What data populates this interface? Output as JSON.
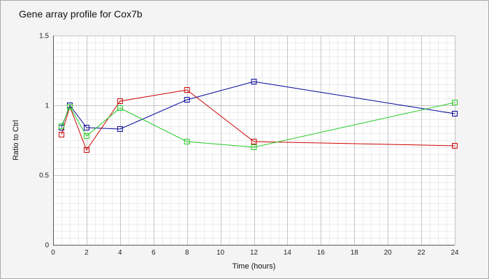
{
  "chart_data": {
    "type": "line",
    "title": "Gene array profile for Cox7b",
    "xlabel": "Time (hours)",
    "ylabel": "Ratio to Ctrl",
    "xlim": [
      0,
      24
    ],
    "ylim": [
      0,
      1.5
    ],
    "x_ticks": [
      0,
      2,
      4,
      6,
      8,
      10,
      12,
      14,
      16,
      18,
      20,
      22,
      24
    ],
    "y_ticks": [
      0,
      0.5,
      1,
      1.5
    ],
    "y_tick_labels": [
      "0",
      "0.5",
      "1",
      "1.5"
    ],
    "grid": true,
    "marker": "square",
    "series": [
      {
        "color": "#000099",
        "x": [
          0.5,
          1,
          2,
          4,
          8,
          12,
          24
        ],
        "y": [
          0.84,
          1.0,
          0.84,
          0.83,
          1.04,
          1.17,
          0.94
        ]
      },
      {
        "color": "#cc0000",
        "x": [
          0.5,
          1,
          2,
          4,
          8,
          12,
          24
        ],
        "y": [
          0.79,
          0.99,
          0.68,
          1.03,
          1.11,
          0.74,
          0.71
        ]
      },
      {
        "color": "#22cc22",
        "x": [
          0.5,
          1,
          2,
          4,
          8,
          12,
          24
        ],
        "y": [
          0.85,
          0.99,
          0.78,
          0.98,
          0.74,
          0.7,
          1.02
        ]
      }
    ]
  }
}
